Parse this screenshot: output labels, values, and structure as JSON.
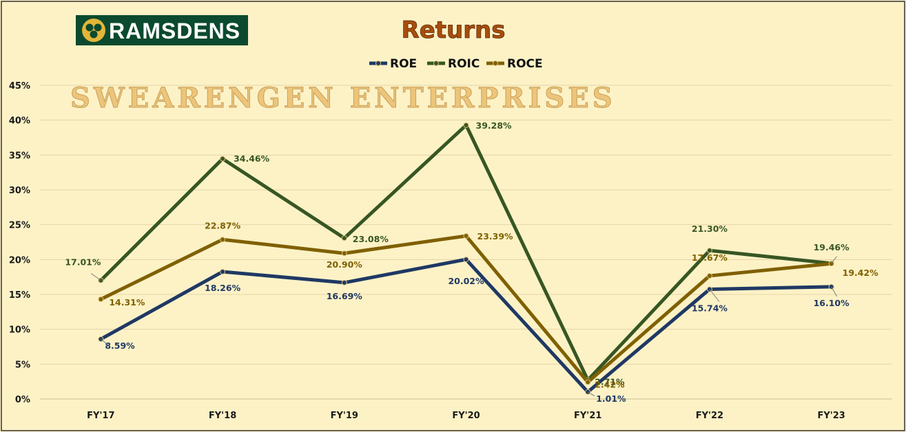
{
  "logo": {
    "text": "RAMSDENS",
    "bg_color": "#0b4a2e",
    "fg_color": "#ffffff"
  },
  "watermark": "SWEARENGEN ENTERPRISES",
  "chart_data": {
    "type": "line",
    "title": "Returns",
    "categories": [
      "FY'17",
      "FY'18",
      "FY'19",
      "FY'20",
      "FY'21",
      "FY'22",
      "FY'23"
    ],
    "series": [
      {
        "name": "ROE",
        "color": "#1f3864",
        "values": [
          8.59,
          18.26,
          16.69,
          20.02,
          1.01,
          15.74,
          16.1
        ],
        "labels": [
          "8.59%",
          "18.26%",
          "16.69%",
          "20.02%",
          "1.01%",
          "15.74%",
          "16.10%"
        ]
      },
      {
        "name": "ROIC",
        "color": "#375623",
        "values": [
          17.01,
          34.46,
          23.08,
          39.28,
          2.71,
          21.3,
          19.46
        ],
        "labels": [
          "17.01%",
          "34.46%",
          "23.08%",
          "39.28%",
          "2.71%",
          "21.30%",
          "19.46%"
        ]
      },
      {
        "name": "ROCE",
        "color": "#7f6000",
        "values": [
          14.31,
          22.87,
          20.9,
          23.39,
          2.42,
          17.67,
          19.42
        ],
        "labels": [
          "14.31%",
          "22.87%",
          "20.90%",
          "23.39%",
          "2.42%",
          "17.67%",
          "19.42%"
        ]
      }
    ],
    "yticks": [
      "0%",
      "5%",
      "10%",
      "15%",
      "20%",
      "25%",
      "30%",
      "35%",
      "40%",
      "45%"
    ],
    "ylim": [
      0,
      45
    ],
    "grid": true,
    "legend_position": "top-center"
  }
}
